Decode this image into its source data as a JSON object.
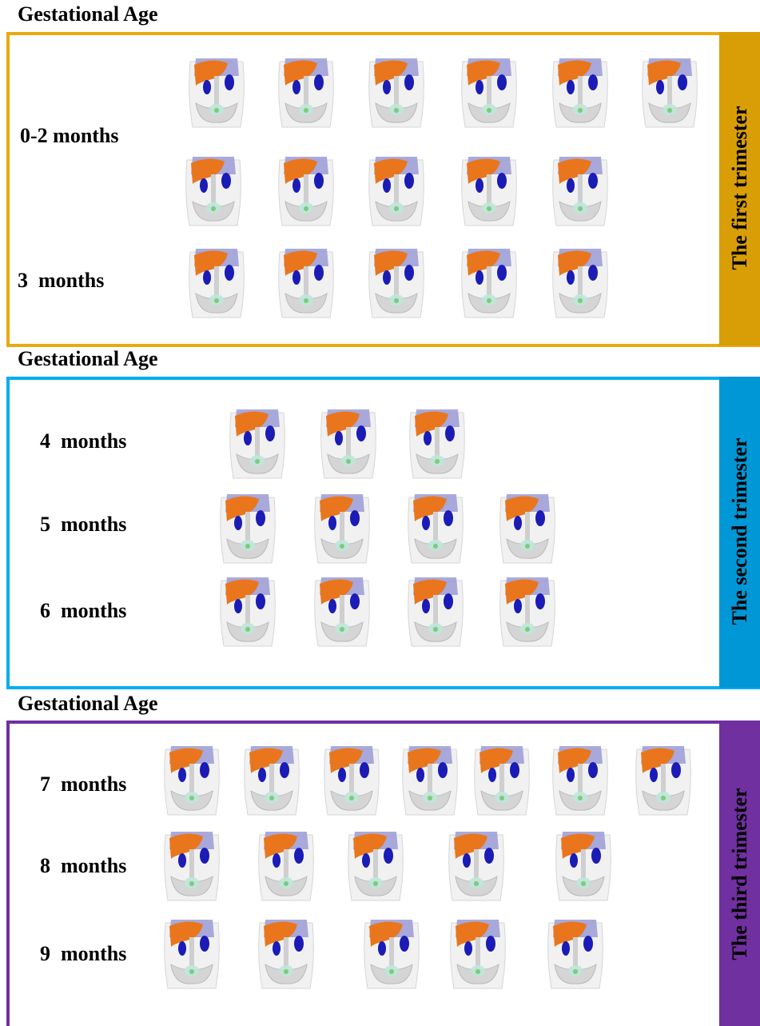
{
  "sections": [
    {
      "heading": "Gestational Age",
      "trimester": "The first trimester",
      "rows": [
        {
          "label": "0-2 months"
        },
        {
          "label": "3  months"
        }
      ]
    },
    {
      "heading": "Gestational Age",
      "trimester": "The second trimester",
      "rows": [
        {
          "label": "4  months"
        },
        {
          "label": "5  months"
        },
        {
          "label": "6  months"
        }
      ]
    },
    {
      "heading": "Gestational Age",
      "trimester": "The third trimester",
      "rows": [
        {
          "label": "7  months"
        },
        {
          "label": "8  months"
        },
        {
          "label": "9  months"
        }
      ]
    }
  ]
}
